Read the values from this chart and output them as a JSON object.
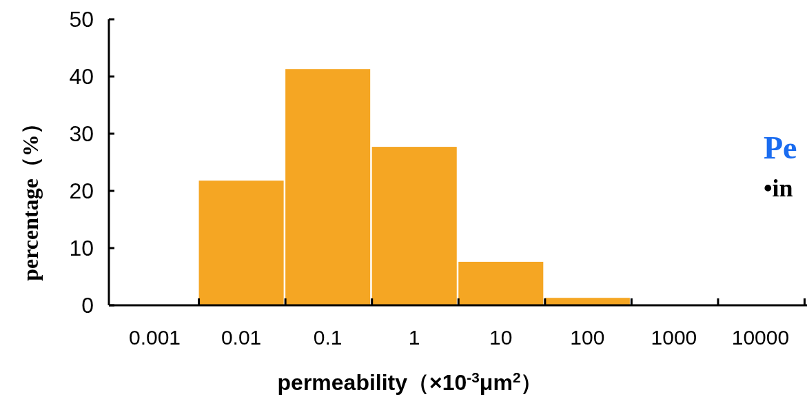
{
  "chart_data": {
    "type": "bar",
    "xlabel": "permeability（×10$^{-3}$μm$^{2}$）",
    "ylabel": "percentage（%）",
    "categories": [
      "0.001",
      "0.01",
      "0.1",
      "1",
      "10",
      "100",
      "1000",
      "10000"
    ],
    "values": [
      0,
      21.8,
      41.3,
      27.7,
      7.6,
      1.3,
      0,
      0
    ],
    "color": "#f5a623",
    "ylim": [
      0,
      50
    ],
    "yticks": [
      0,
      10,
      20,
      30,
      40,
      50
    ],
    "annotations": [
      "Pe",
      "•in"
    ]
  }
}
